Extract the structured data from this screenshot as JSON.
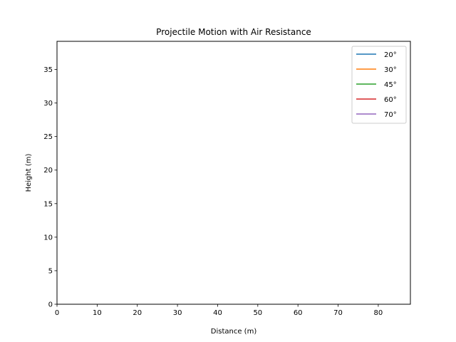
{
  "chart_data": {
    "type": "line",
    "title": "Projectile Motion with Air Resistance",
    "xlabel": "Distance (m)",
    "ylabel": "Height (m)",
    "xlim": [
      0,
      88
    ],
    "ylim": [
      0,
      39.2
    ],
    "xticks": [
      0,
      10,
      20,
      30,
      40,
      50,
      60,
      70,
      80
    ],
    "yticks": [
      0,
      5,
      10,
      15,
      20,
      25,
      30,
      35
    ],
    "grid": false,
    "legend_position": "top-right",
    "series": [
      {
        "name": "20°",
        "color": "#1f77b4",
        "x": [],
        "y": []
      },
      {
        "name": "30°",
        "color": "#ff7f0e",
        "x": [],
        "y": []
      },
      {
        "name": "45°",
        "color": "#2ca02c",
        "x": [],
        "y": []
      },
      {
        "name": "60°",
        "color": "#d62728",
        "x": [],
        "y": []
      },
      {
        "name": "70°",
        "color": "#9467bd",
        "x": [],
        "y": []
      }
    ]
  }
}
